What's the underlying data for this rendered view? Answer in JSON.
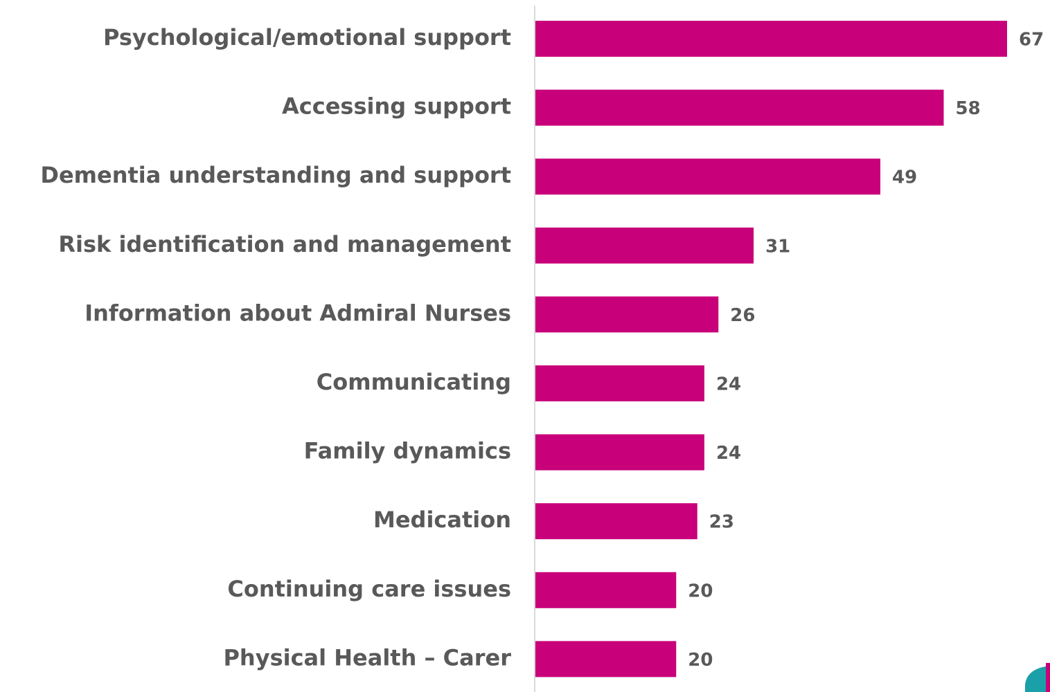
{
  "chart_data": {
    "type": "bar",
    "orientation": "horizontal",
    "categories": [
      "Psychological/emotional support",
      "Accessing support",
      "Dementia understanding and support",
      "Risk identification and management",
      "Information about Admiral Nurses",
      "Communicating",
      "Family dynamics",
      "Medication",
      "Continuing care issues",
      "Physical Health – Carer"
    ],
    "values": [
      67,
      58,
      49,
      31,
      26,
      24,
      24,
      23,
      20,
      20
    ],
    "color": "#c8007a"
  }
}
